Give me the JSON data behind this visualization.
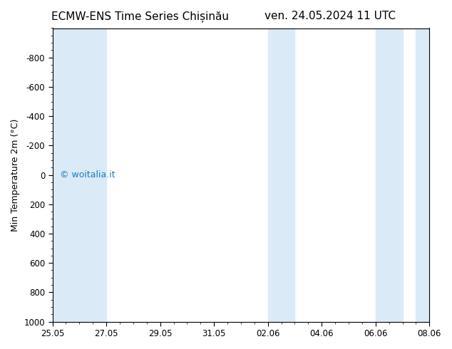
{
  "title_left": "ECMW-ENS Time Series Chișinău",
  "title_right": "ven. 24.05.2024 11 UTC",
  "ylabel": "Min Temperature 2m (°C)",
  "ylim_top": -1000,
  "ylim_bottom": 1000,
  "yticks": [
    -800,
    -600,
    -400,
    -200,
    0,
    200,
    400,
    600,
    800,
    1000
  ],
  "xlim": [
    0,
    14
  ],
  "xtick_positions": [
    0,
    2,
    4,
    6,
    8,
    10,
    12,
    14
  ],
  "xtick_labels": [
    "25.05",
    "27.05",
    "29.05",
    "31.05",
    "02.06",
    "04.06",
    "06.06",
    "08.06"
  ],
  "bg_color": "#ffffff",
  "plot_bg_color": "#ffffff",
  "band_color": "#daeaf7",
  "bands": [
    [
      0,
      2
    ],
    [
      8,
      9
    ],
    [
      12,
      13
    ],
    [
      13.5,
      14
    ]
  ],
  "watermark": "© woitalia.it",
  "watermark_color": "#1e7bc4",
  "title_fontsize": 11,
  "tick_fontsize": 8.5,
  "ylabel_fontsize": 9
}
